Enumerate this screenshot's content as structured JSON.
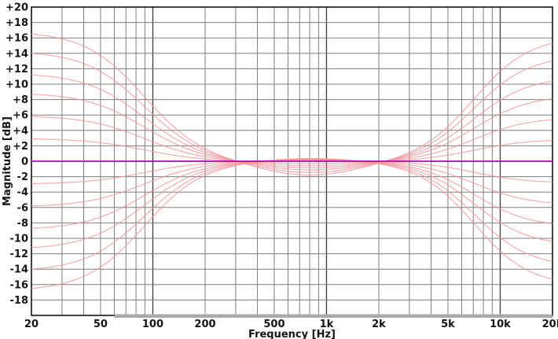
{
  "chart_data": {
    "type": "line",
    "description": "Family of bass/treble shelving (loudness-style) frequency response curves on a log-frequency Bode magnitude plot, with a flat 0 dB reference line",
    "x_axis": {
      "label": "Frequency [Hz]",
      "scale": "log",
      "min_Hz": 20,
      "max_Hz": 20000,
      "major_ticks": [
        {
          "f": 20,
          "label": "20"
        },
        {
          "f": 50,
          "label": "50"
        },
        {
          "f": 100,
          "label": "100"
        },
        {
          "f": 200,
          "label": "200"
        },
        {
          "f": 500,
          "label": "500"
        },
        {
          "f": 1000,
          "label": "1k"
        },
        {
          "f": 2000,
          "label": "2k"
        },
        {
          "f": 5000,
          "label": "5k"
        },
        {
          "f": 10000,
          "label": "10k"
        },
        {
          "f": 20000,
          "label": "20k"
        }
      ],
      "emphasized_gridlines_Hz": [
        100,
        1000,
        10000
      ],
      "grid": "log decades, lines at every 1-2-3...9 multiple"
    },
    "y_axis": {
      "label": "Magnitude [dB]",
      "min_dB": -20,
      "max_dB": 20,
      "tick_step_dB": 2,
      "tick_labels": [
        "+20",
        "+18",
        "+16",
        "+14",
        "+12",
        "+10",
        "+8",
        "+6",
        "+4",
        "+2",
        "0",
        "-2",
        "-4",
        "-6",
        "-8",
        "-10",
        "-12",
        "-14",
        "-16",
        "-18"
      ]
    },
    "zero_line": {
      "value_dB": 0,
      "color": "#b400b4"
    },
    "curves": {
      "color": "#f2949c",
      "opacity": 0.8,
      "low_crossover_Hz": 300,
      "high_crossover_Hz": 2100,
      "mid_extreme_Hz": 800,
      "boost": [
        {
          "at_20Hz_dB": 16.5,
          "at_20kHz_dB": 15.3,
          "mid_dB": -1.9
        },
        {
          "at_20Hz_dB": 14.0,
          "at_20kHz_dB": 13.0,
          "mid_dB": -1.55
        },
        {
          "at_20Hz_dB": 11.2,
          "at_20kHz_dB": 10.4,
          "mid_dB": -1.2
        },
        {
          "at_20Hz_dB": 8.7,
          "at_20kHz_dB": 8.1,
          "mid_dB": -0.9
        },
        {
          "at_20Hz_dB": 5.8,
          "at_20kHz_dB": 5.4,
          "mid_dB": -0.6
        },
        {
          "at_20Hz_dB": 2.9,
          "at_20kHz_dB": 2.7,
          "mid_dB": -0.3
        }
      ],
      "cut": [
        {
          "at_20Hz_dB": -16.5,
          "at_20kHz_dB": -15.3,
          "mid_dB": 0.45
        },
        {
          "at_20Hz_dB": -14.0,
          "at_20kHz_dB": -13.0,
          "mid_dB": 0.4
        },
        {
          "at_20Hz_dB": -11.2,
          "at_20kHz_dB": -10.4,
          "mid_dB": 0.34
        },
        {
          "at_20Hz_dB": -8.7,
          "at_20kHz_dB": -8.1,
          "mid_dB": 0.28
        },
        {
          "at_20Hz_dB": -5.8,
          "at_20kHz_dB": -5.4,
          "mid_dB": 0.22
        },
        {
          "at_20Hz_dB": -2.9,
          "at_20kHz_dB": -2.7,
          "mid_dB": 0.16
        }
      ]
    },
    "bottom_band": {
      "from_Hz": 60,
      "to_Hz": 20000,
      "color": "#a9a9a9",
      "note": "gray bar lying on the bottom axis from ~60 Hz to 20 kHz"
    },
    "model": {
      "low_shelf": {
        "center_log10f": 1.95,
        "slope": 0.17
      },
      "high_shelf": {
        "center_log10f": 3.85,
        "slope": 0.16
      },
      "mid": {
        "center_log10f": 2.9,
        "width": 0.42
      }
    }
  },
  "colors": {
    "background": "#ffffff",
    "plot_border": "#111111",
    "grid_minor": "#7d7d7d",
    "grid_major": "#3c3c3c",
    "tick_text": "#141414"
  }
}
